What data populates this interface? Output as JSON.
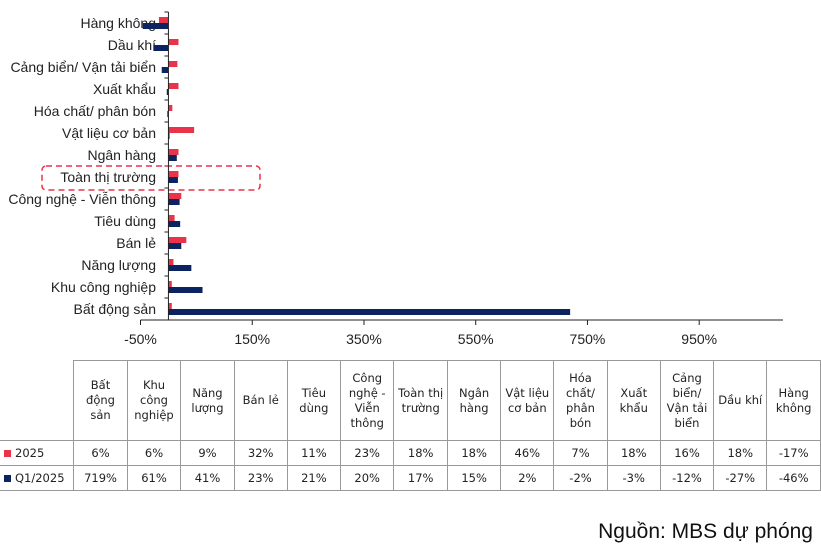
{
  "chart_data": {
    "type": "bar",
    "orientation": "horizontal",
    "categories": [
      "Hàng không",
      "Dầu khí",
      "Cảng biển/ Vận tải biển",
      "Xuất khẩu",
      "Hóa chất/ phân bón",
      "Vật liệu cơ bản",
      "Ngân hàng",
      "Toàn thị trường",
      "Công nghệ - Viễn thông",
      "Tiêu dùng",
      "Bán lẻ",
      "Năng lượng",
      "Khu công nghiệp",
      "Bất động sản"
    ],
    "series": [
      {
        "name": "2025",
        "color": "#E8334A",
        "values": [
          -17,
          18,
          16,
          18,
          7,
          46,
          18,
          18,
          23,
          11,
          32,
          9,
          6,
          6
        ]
      },
      {
        "name": "Q1/2025",
        "color": "#0B2461",
        "values": [
          -46,
          -27,
          -12,
          -3,
          -2,
          2,
          15,
          17,
          20,
          21,
          23,
          41,
          61,
          719
        ]
      }
    ],
    "xlim": [
      -50,
      1100
    ],
    "xticks": [
      -50,
      150,
      350,
      550,
      750,
      950
    ],
    "xtick_labels": [
      "-50%",
      "150%",
      "350%",
      "550%",
      "750%",
      "950%"
    ],
    "highlighted_category": "Toàn thị trường",
    "highlight_color": "#E8334A"
  },
  "table": {
    "columns": [
      "Bất động sản",
      "Khu công nghiệp",
      "Năng lượng",
      "Bán lẻ",
      "Tiêu dùng",
      "Công nghệ - Viễn thông",
      "Toàn thị trường",
      "Ngân hàng",
      "Vật liệu cơ bản",
      "Hóa chất/ phân bón",
      "Xuất khẩu",
      "Cảng biển/ Vận tải biển",
      "Dầu khí",
      "Hàng không"
    ],
    "rows": [
      {
        "label": "2025",
        "color": "#E8334A",
        "cells": [
          "6%",
          "6%",
          "9%",
          "32%",
          "11%",
          "23%",
          "18%",
          "18%",
          "46%",
          "7%",
          "18%",
          "16%",
          "18%",
          "-17%"
        ]
      },
      {
        "label": "Q1/2025",
        "color": "#0B2461",
        "cells": [
          "719%",
          "61%",
          "41%",
          "23%",
          "21%",
          "20%",
          "17%",
          "15%",
          "2%",
          "-2%",
          "-3%",
          "-12%",
          "-27%",
          "-46%"
        ]
      }
    ]
  },
  "source": "Nguồn: MBS dự phóng"
}
